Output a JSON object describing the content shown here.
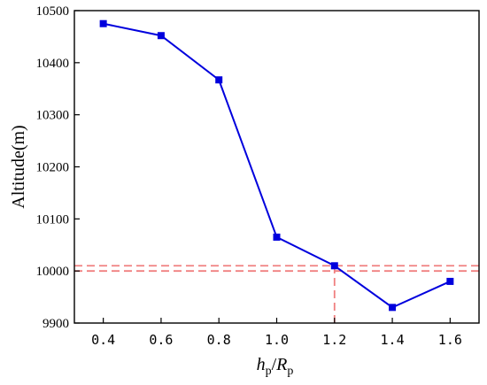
{
  "chart_data": {
    "type": "line",
    "x": [
      0.4,
      0.6,
      0.8,
      1.0,
      1.2,
      1.4,
      1.6
    ],
    "series": [
      {
        "values": [
          10475,
          10452,
          10367,
          10065,
          10010,
          9930,
          9980
        ]
      }
    ],
    "xlabel": {
      "main_1": "h",
      "sub_1": "p",
      "slash": "/",
      "main_2": "R",
      "sub_2": "p"
    },
    "ylabel": "Altitude(m)",
    "xlim": [
      0.3,
      1.7
    ],
    "ylim": [
      9900,
      10500
    ],
    "xticks": [
      "0.4",
      "0.6",
      "0.8",
      "1.0",
      "1.2",
      "1.4",
      "1.6"
    ],
    "yticks": [
      "9900",
      "10000",
      "10100",
      "10200",
      "10300",
      "10400",
      "10500"
    ],
    "grid": false,
    "reference_lines": {
      "horizontal": [
        10010,
        10000
      ],
      "vertical": [
        {
          "x": 1.2,
          "from_y": 9900,
          "to_y": 10010
        }
      ]
    },
    "colors": {
      "series": "#0000dd",
      "marker": "#0000dd",
      "reference": "#f08080",
      "axis": "#000000"
    }
  }
}
